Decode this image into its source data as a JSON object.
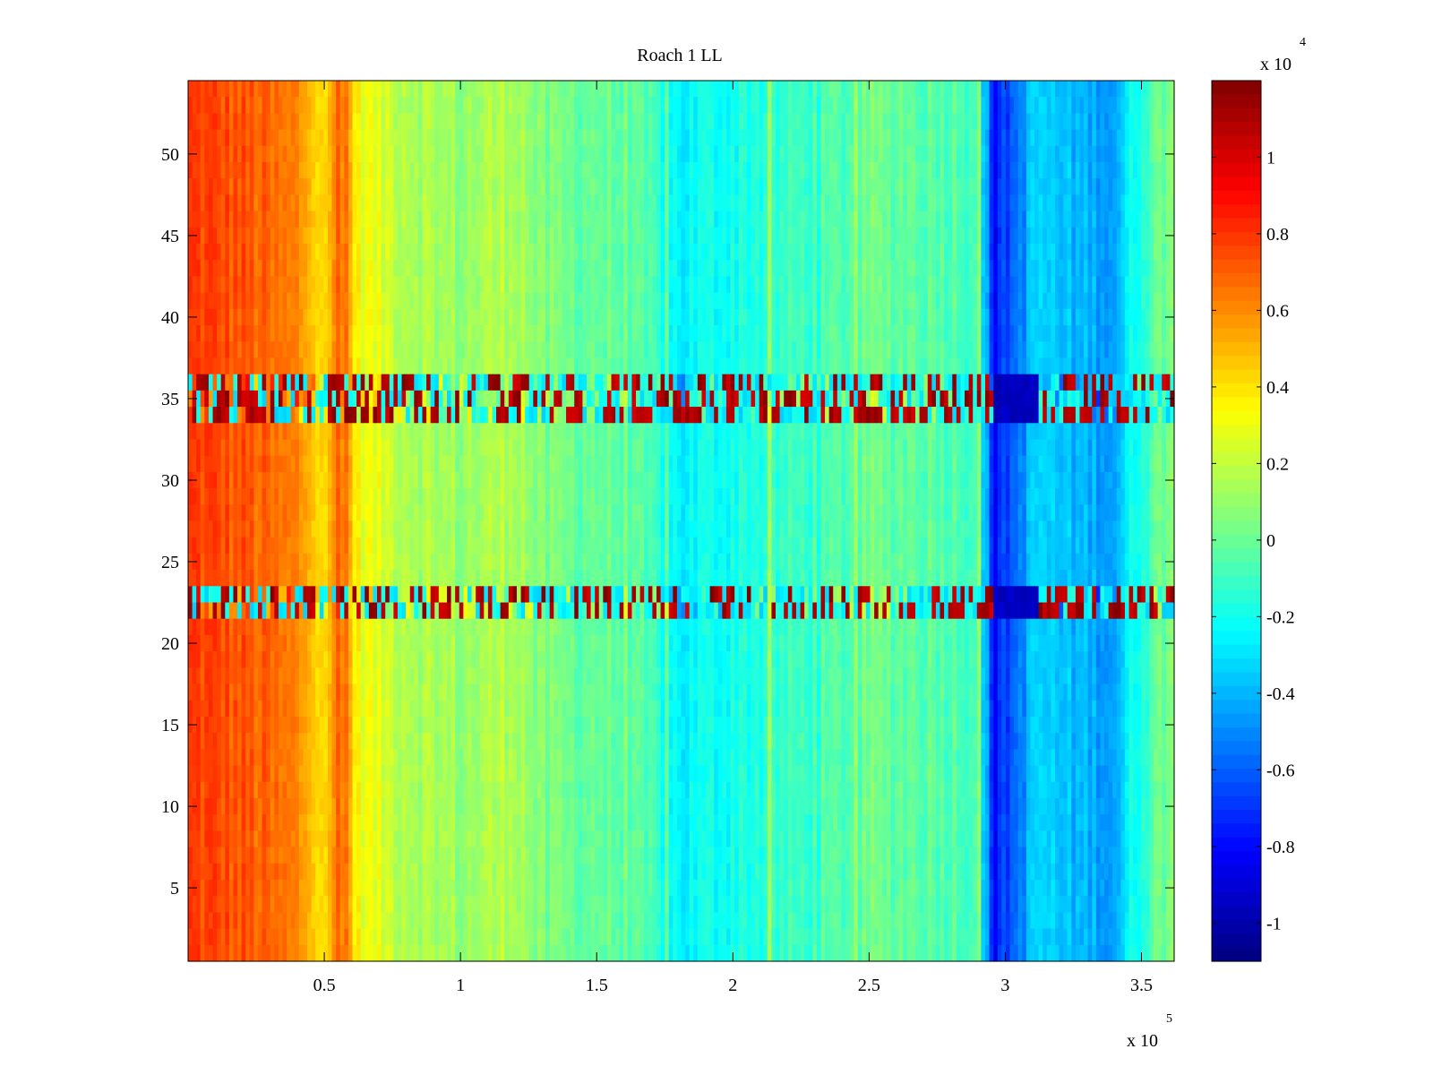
{
  "chart_data": {
    "type": "heatmap",
    "title": "Roach 1 LL",
    "xlabel": "",
    "ylabel": "",
    "colormap": "jet",
    "x_range": [
      0,
      3.62
    ],
    "x_multiplier": "x 10",
    "x_multiplier_exp": "5",
    "x_ticks": [
      "0.5",
      "1",
      "1.5",
      "2",
      "2.5",
      "3",
      "3.5"
    ],
    "y_range": [
      0.5,
      54.5
    ],
    "y_ticks": [
      "5",
      "10",
      "15",
      "20",
      "25",
      "30",
      "35",
      "40",
      "45",
      "50"
    ],
    "color_range": [
      -1.1,
      1.2
    ],
    "color_multiplier": "x 10",
    "color_multiplier_exp": "4",
    "colorbar_ticks": [
      "-1",
      "-0.8",
      "-0.6",
      "-0.4",
      "-0.2",
      "0",
      "0.2",
      "0.4",
      "0.6",
      "0.8",
      "1"
    ],
    "column_profile": {
      "x": [
        0,
        0.2,
        0.4,
        0.5,
        0.58,
        0.62,
        0.8,
        1.0,
        1.2,
        1.3,
        1.5,
        1.7,
        1.8,
        2.0,
        2.2,
        2.4,
        2.5,
        2.7,
        2.9,
        2.96,
        3.12,
        3.2,
        3.4,
        3.5,
        3.62
      ],
      "values": [
        0.78,
        0.72,
        0.6,
        0.45,
        0.65,
        0.33,
        0.18,
        0.1,
        0.18,
        0.02,
        0.0,
        -0.1,
        -0.26,
        -0.18,
        -0.12,
        -0.06,
        0.0,
        -0.02,
        -0.06,
        -0.8,
        -0.32,
        -0.38,
        -0.44,
        -0.12,
        0.1
      ]
    },
    "anomalous_row_bands": [
      {
        "y_from": 33.5,
        "y_to": 36.5,
        "description": "high-variance band"
      },
      {
        "y_from": 21.5,
        "y_to": 23.5,
        "description": "high-variance band"
      }
    ]
  }
}
